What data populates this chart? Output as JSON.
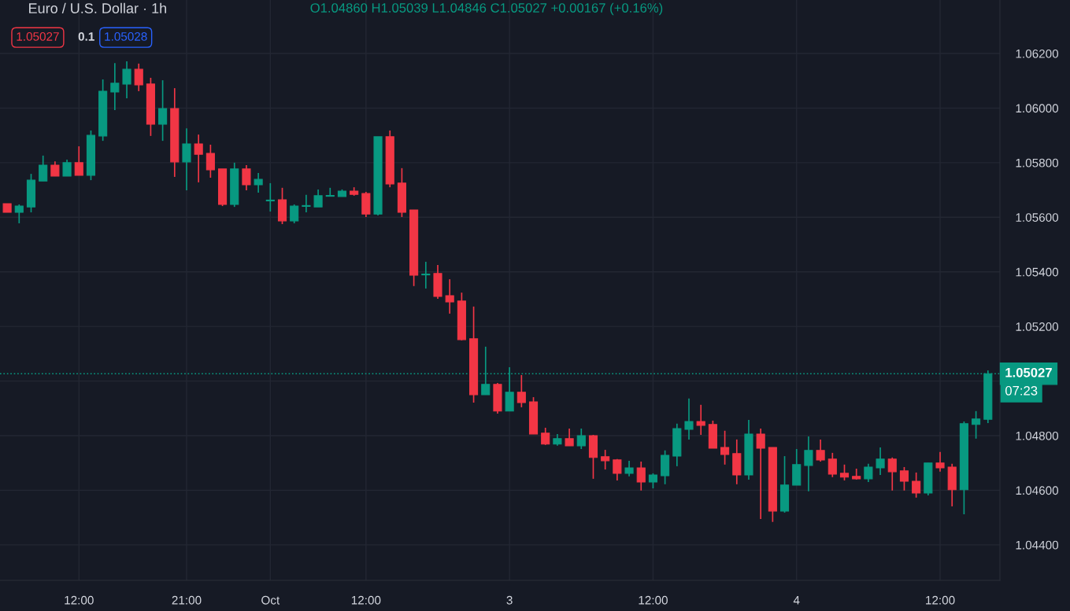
{
  "chart_data": {
    "type": "candlestick",
    "title": "Euro / U.S. Dollar · 1h",
    "categories": [
      null,
      null,
      null,
      null,
      null,
      null,
      "12:00",
      null,
      null,
      null,
      null,
      null,
      null,
      null,
      null,
      "21:00",
      null,
      null,
      null,
      null,
      null,
      null,
      "Oct",
      null,
      null,
      null,
      null,
      null,
      null,
      null,
      "12:00",
      null,
      null,
      null,
      null,
      null,
      null,
      null,
      null,
      null,
      null,
      null,
      "3",
      null,
      null,
      null,
      null,
      null,
      null,
      null,
      null,
      null,
      null,
      null,
      "12:00",
      null,
      null,
      null,
      null,
      null,
      null,
      null,
      null,
      null,
      null,
      null,
      "4",
      null,
      null,
      null,
      null,
      null,
      null,
      null,
      null,
      null,
      null,
      null,
      "12:00",
      null,
      null,
      null,
      null
    ],
    "ohlc": [
      [
        1.0565,
        1.0565,
        1.05618,
        1.05618
      ],
      [
        1.05618,
        1.05647,
        1.05578,
        1.05641
      ],
      [
        1.05638,
        1.05759,
        1.05618,
        1.05736
      ],
      [
        1.05733,
        1.05826,
        1.05733,
        1.05791
      ],
      [
        1.05791,
        1.05805,
        1.05751,
        1.05751
      ],
      [
        1.05751,
        1.05811,
        1.05751,
        1.058
      ],
      [
        1.058,
        1.0586,
        1.05754,
        1.05754
      ],
      [
        1.05754,
        1.05918,
        1.05736,
        1.059
      ],
      [
        1.05898,
        1.06105,
        1.0588,
        1.06062
      ],
      [
        1.06059,
        1.06165,
        1.05993,
        1.06091
      ],
      [
        1.06088,
        1.06171,
        1.06036,
        1.06142
      ],
      [
        1.06142,
        1.06163,
        1.06062,
        1.06085
      ],
      [
        1.06088,
        1.06111,
        1.05898,
        1.05941
      ],
      [
        1.05941,
        1.06102,
        1.0588,
        1.05998
      ],
      [
        1.05998,
        1.06073,
        1.05748,
        1.05803
      ],
      [
        1.05803,
        1.05926,
        1.05699,
        1.05869
      ],
      [
        1.05869,
        1.05903,
        1.05728,
        1.05831
      ],
      [
        1.05834,
        1.05866,
        1.05745,
        1.05774
      ],
      [
        1.05777,
        1.05777,
        1.05641,
        1.05647
      ],
      [
        1.05647,
        1.058,
        1.05638,
        1.05777
      ],
      [
        1.05777,
        1.05791,
        1.05699,
        1.05719
      ],
      [
        1.05719,
        1.05762,
        1.0569,
        1.05739
      ],
      [
        1.0566,
        1.05725,
        1.05621,
        1.05663
      ],
      [
        1.05664,
        1.05708,
        1.05575,
        1.05587
      ],
      [
        1.05587,
        1.05647,
        1.05578,
        1.05641
      ],
      [
        1.0564,
        1.05682,
        1.05618,
        1.05643
      ],
      [
        1.05638,
        1.05702,
        1.05638,
        1.05679
      ],
      [
        1.05677,
        1.05708,
        1.05677,
        1.0568
      ],
      [
        1.05676,
        1.05702,
        1.05676,
        1.05696
      ],
      [
        1.05696,
        1.0571,
        1.05679,
        1.05684
      ],
      [
        1.05687,
        1.05693,
        1.05601,
        1.05612
      ],
      [
        1.05612,
        1.05895,
        1.05607,
        1.05895
      ],
      [
        1.05895,
        1.05918,
        1.0571,
        1.05722
      ],
      [
        1.05725,
        1.0578,
        1.05601,
        1.05618
      ],
      [
        1.05627,
        1.05627,
        1.05348,
        1.05388
      ],
      [
        1.05389,
        1.05437,
        1.05339,
        1.05392
      ],
      [
        1.05394,
        1.05425,
        1.05301,
        1.0531
      ],
      [
        1.05313,
        1.05373,
        1.05247,
        1.0529
      ],
      [
        1.05293,
        1.05324,
        1.05149,
        1.05152
      ],
      [
        1.05155,
        1.05273,
        1.04921,
        1.0495
      ],
      [
        1.0495,
        1.05126,
        1.0495,
        1.04988
      ],
      [
        1.04988,
        1.04993,
        1.04881,
        1.0489
      ],
      [
        1.0489,
        1.05051,
        1.0489,
        1.04959
      ],
      [
        1.04959,
        1.05022,
        1.04904,
        1.04921
      ],
      [
        1.04924,
        1.04941,
        1.04806,
        1.04806
      ],
      [
        1.04809,
        1.04829,
        1.04766,
        1.04769
      ],
      [
        1.04769,
        1.04806,
        1.04763,
        1.04789
      ],
      [
        1.04789,
        1.04826,
        1.04763,
        1.04763
      ],
      [
        1.04763,
        1.04826,
        1.04751,
        1.048
      ],
      [
        1.048,
        1.04803,
        1.04642,
        1.0472
      ],
      [
        1.04723,
        1.04748,
        1.04676,
        1.04708
      ],
      [
        1.04711,
        1.04714,
        1.04636,
        1.04662
      ],
      [
        1.04662,
        1.04708,
        1.04651,
        1.04682
      ],
      [
        1.04682,
        1.04705,
        1.04599,
        1.0463
      ],
      [
        1.0463,
        1.04662,
        1.04607,
        1.04656
      ],
      [
        1.04653,
        1.04746,
        1.04622,
        1.04728
      ],
      [
        1.04725,
        1.04844,
        1.04688,
        1.04826
      ],
      [
        1.04823,
        1.04936,
        1.04786,
        1.04852
      ],
      [
        1.04852,
        1.04913,
        1.04803,
        1.04838
      ],
      [
        1.04841,
        1.04855,
        1.04754,
        1.04754
      ],
      [
        1.04757,
        1.04818,
        1.04694,
        1.04731
      ],
      [
        1.04734,
        1.04786,
        1.04622,
        1.04656
      ],
      [
        1.04656,
        1.04858,
        1.04639,
        1.04806
      ],
      [
        1.04806,
        1.04826,
        1.04495,
        1.04754
      ],
      [
        1.04757,
        1.04757,
        1.04484,
        1.04524
      ],
      [
        1.04524,
        1.04725,
        1.04518,
        1.04619
      ],
      [
        1.04619,
        1.04751,
        1.04619,
        1.04694
      ],
      [
        1.04691,
        1.04797,
        1.04596,
        1.04746
      ],
      [
        1.04746,
        1.04786,
        1.04705,
        1.04711
      ],
      [
        1.04714,
        1.04737,
        1.04648,
        1.04659
      ],
      [
        1.04662,
        1.04694,
        1.04636,
        1.04648
      ],
      [
        1.04651,
        1.04679,
        1.04639,
        1.04642
      ],
      [
        1.04642,
        1.04697,
        1.0463,
        1.04685
      ],
      [
        1.04682,
        1.04757,
        1.04656,
        1.04714
      ],
      [
        1.04714,
        1.0472,
        1.04599,
        1.04668
      ],
      [
        1.04671,
        1.04685,
        1.04599,
        1.04633
      ],
      [
        1.04633,
        1.04665,
        1.04573,
        1.0459
      ],
      [
        1.0459,
        1.047,
        1.04581,
        1.047
      ],
      [
        1.047,
        1.0474,
        1.04668,
        1.04682
      ],
      [
        1.04685,
        1.04697,
        1.04541,
        1.04602
      ],
      [
        1.04602,
        1.04852,
        1.04512,
        1.04844
      ],
      [
        1.04841,
        1.0489,
        1.04789,
        1.04861
      ],
      [
        1.0486,
        1.05039,
        1.04846,
        1.05027
      ]
    ],
    "ylim": [
      1.0427,
      1.06396
    ],
    "yticks": [
      {
        "value": 1.044,
        "label": "1.04400"
      },
      {
        "value": 1.046,
        "label": "1.04600"
      },
      {
        "value": 1.048,
        "label": "1.04800"
      },
      {
        "value": 1.05,
        "label": null
      },
      {
        "value": 1.052,
        "label": "1.05200"
      },
      {
        "value": 1.054,
        "label": "1.05400"
      },
      {
        "value": 1.056,
        "label": "1.05600"
      },
      {
        "value": 1.058,
        "label": "1.05800"
      },
      {
        "value": 1.06,
        "label": "1.06000"
      },
      {
        "value": 1.062,
        "label": "1.06200"
      }
    ],
    "grid": true,
    "ref_lines": [
      {
        "axis": "y",
        "value": 1.05027,
        "label": "1.05027",
        "color": "#089981",
        "line_style": "dotted"
      }
    ],
    "annotations": [
      "O1.04860 H1.05039 L1.04846 C1.05027 +0.00167 (+0.16%)",
      "1.05027",
      "0.1",
      "1.05028",
      "07:23"
    ]
  }
}
